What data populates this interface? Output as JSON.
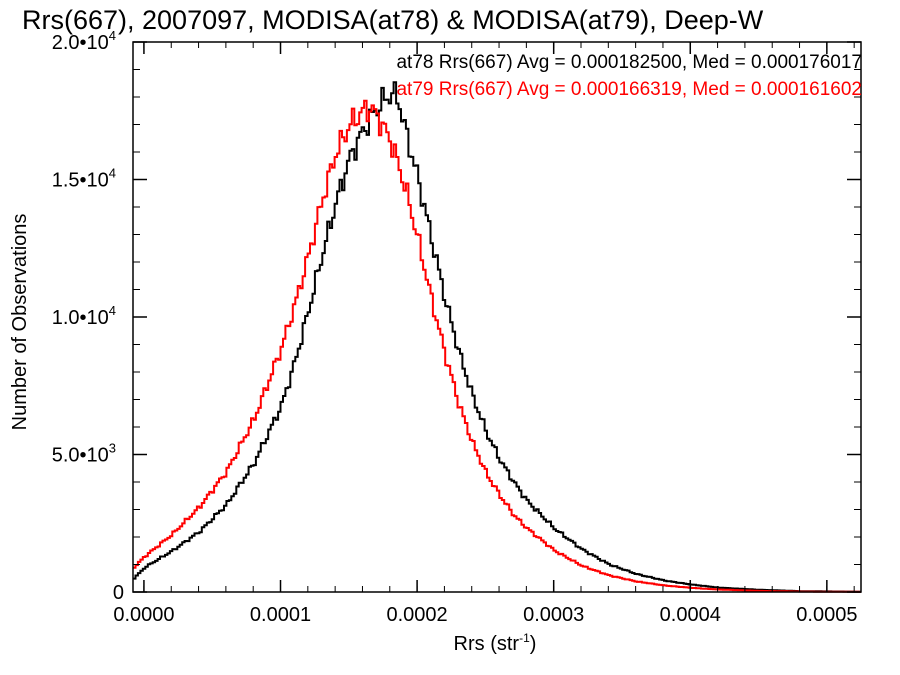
{
  "chart_data": {
    "type": "line",
    "title": "Rrs(667), 2007097, MODISA(at78) & MODISA(at79), Deep-W",
    "xlabel": "Rrs (str",
    "xlabel_sup": "-1",
    "xlabel_end": ")",
    "ylabel": "Number of Observations",
    "xlim": [
      -8e-06,
      0.000525
    ],
    "ylim": [
      0,
      20000
    ],
    "x_ticks": [
      {
        "value": 0.0,
        "label": "0.0000"
      },
      {
        "value": 0.0001,
        "label": "0.0001"
      },
      {
        "value": 0.0002,
        "label": "0.0002"
      },
      {
        "value": 0.0003,
        "label": "0.0003"
      },
      {
        "value": 0.0004,
        "label": "0.0004"
      },
      {
        "value": 0.0005,
        "label": "0.0005"
      }
    ],
    "y_ticks": [
      {
        "value": 0,
        "mant": "0",
        "exp": ""
      },
      {
        "value": 5000,
        "mant": "5.0•10",
        "exp": "3"
      },
      {
        "value": 10000,
        "mant": "1.0•10",
        "exp": "4"
      },
      {
        "value": 15000,
        "mant": "1.5•10",
        "exp": "4"
      },
      {
        "value": 20000,
        "mant": "2.0•10",
        "exp": "4"
      }
    ],
    "grid": false,
    "legend_position": "top-right",
    "series": [
      {
        "name": "at78 Rrs(667) Avg = 0.000182500, Med = 0.000176017",
        "color": "#000000",
        "x": [
          -8e-06,
          0.0,
          2e-05,
          4e-05,
          6e-05,
          8e-05,
          0.0001,
          0.00011,
          0.00012,
          0.00013,
          0.00014,
          0.00015,
          0.00016,
          0.00017,
          0.000175,
          0.00018,
          0.000185,
          0.00019,
          0.0002,
          0.00021,
          0.00022,
          0.00023,
          0.00024,
          0.00025,
          0.00026,
          0.00027,
          0.00028,
          0.0003,
          0.00032,
          0.00034,
          0.00036,
          0.00038,
          0.0004,
          0.00042,
          0.00045,
          0.00048,
          0.000525
        ],
        "y": [
          500,
          900,
          1500,
          2200,
          3200,
          4700,
          6800,
          8400,
          10300,
          12300,
          14200,
          15800,
          16800,
          17600,
          17900,
          18100,
          18000,
          16900,
          15000,
          12800,
          10600,
          8700,
          7100,
          5800,
          4800,
          4000,
          3300,
          2300,
          1550,
          1000,
          650,
          420,
          270,
          160,
          80,
          30,
          10
        ]
      },
      {
        "name": "at79 Rrs(667) Avg = 0.000166319, Med = 0.000161602",
        "color": "#ff0000",
        "x": [
          -8e-06,
          0.0,
          2e-05,
          4e-05,
          6e-05,
          8e-05,
          0.0001,
          0.00011,
          0.00012,
          0.00013,
          0.00014,
          0.00015,
          0.00016,
          0.000165,
          0.00017,
          0.00018,
          0.00019,
          0.0002,
          0.00021,
          0.00022,
          0.00023,
          0.00024,
          0.00025,
          0.00026,
          0.00027,
          0.00028,
          0.0003,
          0.00032,
          0.00034,
          0.00036,
          0.00038,
          0.0004,
          0.00042,
          0.00045,
          0.00048,
          0.000525
        ],
        "y": [
          900,
          1300,
          2100,
          3100,
          4400,
          6300,
          8900,
          10500,
          12300,
          14300,
          16000,
          17000,
          17500,
          17600,
          17300,
          16400,
          14800,
          12800,
          10600,
          8600,
          6800,
          5400,
          4300,
          3500,
          2800,
          2300,
          1500,
          950,
          600,
          380,
          240,
          150,
          90,
          40,
          15,
          5
        ]
      }
    ]
  }
}
